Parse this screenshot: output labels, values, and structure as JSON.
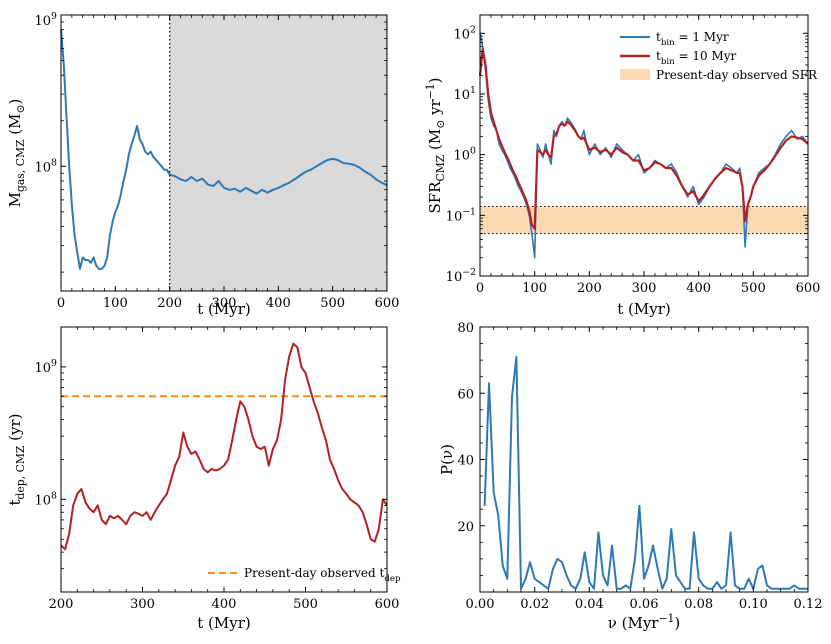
{
  "colors": {
    "blue": "#2e78b5",
    "red": "#b22222",
    "orange": "#ff8c1a",
    "band": "#fdd9b3",
    "shade": "#d9d9d9"
  },
  "chart_data": [
    {
      "type": "line",
      "title": "",
      "xlabel": "t (Myr)",
      "ylabel": "M_gas, CMZ (M_sun)",
      "yscale": "log",
      "xlim": [
        0,
        600
      ],
      "ylim": [
        15000000,
        1000000000
      ],
      "xticks": [
        "0",
        "100",
        "200",
        "300",
        "400",
        "500",
        "600"
      ],
      "yticks": [
        "10^8",
        "10^9"
      ],
      "shaded_span": [
        200,
        600
      ],
      "vline": 200,
      "series": [
        {
          "name": "M_gas",
          "color": "#2e78b5",
          "x": [
            0,
            5,
            10,
            15,
            20,
            25,
            30,
            35,
            40,
            45,
            50,
            55,
            60,
            65,
            70,
            75,
            80,
            85,
            90,
            95,
            100,
            105,
            110,
            115,
            120,
            125,
            130,
            135,
            140,
            145,
            150,
            155,
            160,
            165,
            170,
            175,
            180,
            185,
            190,
            195,
            200,
            210,
            220,
            230,
            240,
            250,
            260,
            270,
            280,
            290,
            300,
            310,
            320,
            330,
            340,
            350,
            360,
            370,
            380,
            390,
            400,
            410,
            420,
            430,
            440,
            450,
            460,
            470,
            480,
            490,
            500,
            510,
            520,
            530,
            540,
            550,
            560,
            570,
            580,
            590,
            600
          ],
          "y": [
            800000000,
            480000000,
            220000000,
            100000000,
            55000000,
            35000000,
            27000000,
            21000000,
            25000000,
            24000000,
            24000000,
            23000000,
            25000000,
            22000000,
            21000000,
            21000000,
            22000000,
            25000000,
            35000000,
            43000000,
            50000000,
            55000000,
            65000000,
            80000000,
            95000000,
            120000000,
            140000000,
            160000000,
            185000000,
            150000000,
            140000000,
            125000000,
            120000000,
            125000000,
            115000000,
            110000000,
            105000000,
            100000000,
            95000000,
            95000000,
            88000000,
            86000000,
            82000000,
            80000000,
            85000000,
            80000000,
            83000000,
            76000000,
            74000000,
            80000000,
            72000000,
            70000000,
            71000000,
            68000000,
            72000000,
            69000000,
            66000000,
            70000000,
            67000000,
            70000000,
            72000000,
            75000000,
            78000000,
            82000000,
            87000000,
            92000000,
            95000000,
            100000000,
            105000000,
            110000000,
            112000000,
            110000000,
            105000000,
            104000000,
            102000000,
            98000000,
            92000000,
            88000000,
            82000000,
            78000000,
            75000000
          ]
        }
      ]
    },
    {
      "type": "line",
      "title": "",
      "xlabel": "t (Myr)",
      "ylabel": "SFR_CMZ (M_sun yr^-1)",
      "yscale": "log",
      "xlim": [
        0,
        600
      ],
      "ylim": [
        0.01,
        200
      ],
      "xticks": [
        "0",
        "100",
        "200",
        "300",
        "400",
        "500",
        "600"
      ],
      "yticks": [
        "10^-2",
        "10^-1",
        "10^0",
        "10^1",
        "10^2"
      ],
      "band": {
        "y": [
          0.05,
          0.14
        ],
        "label": "Present-day observed SFR"
      },
      "legend": [
        {
          "label": "t_bin = 1 Myr"
        },
        {
          "label": "t_bin = 10 Myr"
        },
        {
          "label": "Present-day observed SFR"
        }
      ],
      "series": [
        {
          "name": "t_bin = 1 Myr",
          "color": "#2e78b5",
          "x": [
            0,
            5,
            10,
            15,
            20,
            25,
            30,
            35,
            40,
            45,
            50,
            55,
            60,
            65,
            70,
            75,
            80,
            85,
            90,
            95,
            100,
            105,
            110,
            115,
            120,
            125,
            130,
            135,
            140,
            145,
            150,
            155,
            160,
            165,
            170,
            175,
            180,
            185,
            190,
            195,
            200,
            210,
            220,
            230,
            240,
            250,
            260,
            270,
            280,
            290,
            300,
            310,
            320,
            330,
            340,
            350,
            360,
            370,
            380,
            390,
            400,
            410,
            420,
            430,
            440,
            450,
            460,
            470,
            475,
            480,
            485,
            490,
            495,
            500,
            510,
            520,
            530,
            540,
            550,
            560,
            570,
            580,
            590,
            600
          ],
          "y": [
            100,
            60,
            25,
            8,
            4,
            3,
            2.5,
            1.5,
            1.2,
            1.0,
            0.8,
            0.6,
            0.5,
            0.4,
            0.3,
            0.25,
            0.2,
            0.15,
            0.1,
            0.05,
            0.02,
            1.5,
            1.2,
            0.9,
            1.5,
            1.0,
            0.7,
            2.5,
            2.0,
            3.0,
            3.5,
            3.0,
            4.0,
            3.5,
            3.0,
            2.5,
            2.0,
            1.8,
            2.5,
            1.5,
            1.0,
            1.5,
            1.0,
            1.3,
            0.9,
            1.5,
            1.2,
            1.0,
            0.8,
            1.0,
            0.5,
            0.6,
            0.8,
            0.7,
            0.6,
            0.7,
            0.5,
            0.3,
            0.2,
            0.3,
            0.15,
            0.2,
            0.3,
            0.4,
            0.5,
            0.7,
            0.6,
            0.5,
            0.6,
            0.3,
            0.03,
            0.15,
            0.2,
            0.3,
            0.5,
            0.6,
            0.7,
            1.0,
            1.5,
            2.0,
            2.5,
            1.8,
            2.0,
            1.5
          ]
        },
        {
          "name": "t_bin = 10 Myr",
          "color": "#b22222",
          "x": [
            0,
            5,
            10,
            15,
            20,
            25,
            30,
            35,
            40,
            45,
            50,
            55,
            60,
            65,
            70,
            75,
            80,
            85,
            90,
            95,
            100,
            105,
            110,
            115,
            120,
            125,
            130,
            135,
            140,
            145,
            150,
            155,
            160,
            165,
            170,
            175,
            180,
            185,
            190,
            195,
            200,
            210,
            220,
            230,
            240,
            250,
            260,
            270,
            280,
            290,
            300,
            310,
            320,
            330,
            340,
            350,
            360,
            370,
            380,
            390,
            400,
            410,
            420,
            430,
            440,
            450,
            460,
            470,
            475,
            480,
            485,
            490,
            495,
            500,
            510,
            520,
            530,
            540,
            550,
            560,
            570,
            580,
            590,
            600
          ],
          "y": [
            20,
            55,
            30,
            10,
            5,
            3.5,
            2.5,
            1.8,
            1.4,
            1.1,
            0.9,
            0.7,
            0.55,
            0.45,
            0.35,
            0.28,
            0.22,
            0.17,
            0.12,
            0.07,
            0.06,
            1.2,
            1.1,
            1.0,
            1.2,
            1.0,
            0.9,
            2.0,
            2.2,
            3.0,
            3.2,
            3.0,
            3.5,
            3.2,
            2.8,
            2.4,
            2.0,
            1.8,
            1.9,
            1.5,
            1.2,
            1.3,
            1.1,
            1.2,
            1.0,
            1.3,
            1.1,
            1.0,
            0.8,
            0.8,
            0.55,
            0.6,
            0.75,
            0.7,
            0.6,
            0.6,
            0.45,
            0.3,
            0.22,
            0.25,
            0.17,
            0.22,
            0.3,
            0.4,
            0.5,
            0.6,
            0.55,
            0.5,
            0.5,
            0.3,
            0.08,
            0.15,
            0.2,
            0.3,
            0.45,
            0.55,
            0.7,
            0.95,
            1.3,
            1.7,
            2.0,
            1.9,
            1.8,
            1.5
          ]
        }
      ]
    },
    {
      "type": "line",
      "title": "",
      "xlabel": "t (Myr)",
      "ylabel": "t_dep, CMZ (yr)",
      "yscale": "log",
      "xlim": [
        200,
        600
      ],
      "ylim": [
        20000000,
        2000000000
      ],
      "xticks": [
        "200",
        "300",
        "400",
        "500",
        "600"
      ],
      "yticks": [
        "10^8",
        "10^9"
      ],
      "hline": {
        "y": 600000000,
        "label": "Present-day observed t_dep"
      },
      "series": [
        {
          "name": "t_dep",
          "color": "#b22222",
          "x": [
            200,
            205,
            210,
            215,
            220,
            225,
            230,
            235,
            240,
            245,
            250,
            255,
            260,
            265,
            270,
            275,
            280,
            285,
            290,
            295,
            300,
            305,
            310,
            315,
            320,
            325,
            330,
            335,
            340,
            345,
            350,
            355,
            360,
            365,
            370,
            375,
            380,
            385,
            390,
            395,
            400,
            405,
            410,
            415,
            420,
            425,
            430,
            435,
            440,
            445,
            450,
            455,
            460,
            465,
            470,
            475,
            480,
            485,
            490,
            495,
            500,
            505,
            510,
            515,
            520,
            525,
            530,
            535,
            540,
            545,
            550,
            555,
            560,
            565,
            570,
            575,
            580,
            585,
            590,
            595,
            600
          ],
          "y": [
            45000000,
            42000000,
            55000000,
            90000000,
            110000000,
            120000000,
            95000000,
            85000000,
            80000000,
            90000000,
            70000000,
            65000000,
            75000000,
            72000000,
            75000000,
            70000000,
            65000000,
            75000000,
            80000000,
            78000000,
            75000000,
            80000000,
            70000000,
            80000000,
            90000000,
            100000000,
            110000000,
            140000000,
            180000000,
            210000000,
            320000000,
            250000000,
            220000000,
            230000000,
            200000000,
            170000000,
            160000000,
            170000000,
            165000000,
            170000000,
            180000000,
            200000000,
            280000000,
            400000000,
            550000000,
            500000000,
            400000000,
            300000000,
            250000000,
            240000000,
            250000000,
            180000000,
            240000000,
            280000000,
            400000000,
            800000000,
            1200000000,
            1500000000,
            1400000000,
            1000000000,
            900000000,
            700000000,
            550000000,
            450000000,
            350000000,
            280000000,
            200000000,
            170000000,
            140000000,
            120000000,
            110000000,
            100000000,
            95000000,
            90000000,
            80000000,
            65000000,
            50000000,
            48000000,
            60000000,
            100000000,
            90000000
          ]
        }
      ]
    },
    {
      "type": "line",
      "title": "",
      "xlabel": "ν (Myr^-1)",
      "ylabel": "P(ν)",
      "xlim": [
        0,
        0.12
      ],
      "ylim": [
        0,
        80
      ],
      "xticks": [
        "0.00",
        "0.02",
        "0.04",
        "0.06",
        "0.08",
        "0.10",
        "0.12"
      ],
      "yticks": [
        "20",
        "40",
        "60",
        "80"
      ],
      "series": [
        {
          "name": "P(nu)",
          "color": "#2e78b5",
          "x": [
            0.0017,
            0.0033,
            0.005,
            0.0067,
            0.0083,
            0.01,
            0.0117,
            0.0133,
            0.015,
            0.0167,
            0.0183,
            0.02,
            0.0217,
            0.0233,
            0.025,
            0.0267,
            0.0283,
            0.03,
            0.0317,
            0.0333,
            0.035,
            0.0367,
            0.0383,
            0.04,
            0.0417,
            0.0433,
            0.045,
            0.0467,
            0.0483,
            0.05,
            0.0517,
            0.0533,
            0.055,
            0.0567,
            0.0583,
            0.06,
            0.0617,
            0.0633,
            0.065,
            0.0667,
            0.0683,
            0.07,
            0.0717,
            0.0733,
            0.075,
            0.0767,
            0.0783,
            0.08,
            0.0817,
            0.0833,
            0.085,
            0.0867,
            0.0883,
            0.09,
            0.0917,
            0.0933,
            0.095,
            0.0967,
            0.0983,
            0.1,
            0.1017,
            0.1033,
            0.105,
            0.1067,
            0.1083,
            0.11,
            0.1117,
            0.1133,
            0.115,
            0.1167,
            0.1183,
            0.12
          ],
          "y": [
            26,
            63,
            30,
            23,
            8,
            4,
            59,
            71,
            1,
            4,
            9,
            4,
            3,
            2,
            1,
            7,
            10,
            9,
            5,
            2,
            1,
            4,
            12,
            3,
            1,
            18,
            5,
            2,
            14,
            1,
            1,
            2,
            1,
            10,
            26,
            4,
            8,
            14,
            7,
            1,
            4,
            19,
            5,
            3,
            1,
            1,
            18,
            4,
            2,
            1,
            1,
            3,
            1,
            2,
            18,
            2,
            1,
            1,
            4,
            1,
            7,
            8,
            2,
            1,
            1,
            1,
            1,
            1,
            2,
            1,
            1,
            1
          ]
        }
      ]
    }
  ]
}
